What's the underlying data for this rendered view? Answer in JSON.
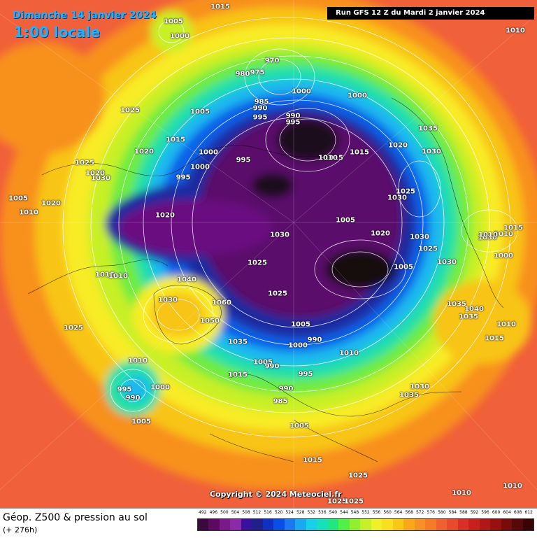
{
  "header": {
    "date": "Dimanche 14 janvier 2024",
    "time": "1:00 locale",
    "run": "Run GFS 12 Z du Mardi 2 janvier 2024"
  },
  "copyright": "Copyright © 2024 Meteociel.fr",
  "footer": {
    "title": "Géop. Z500 & pression au sol",
    "subtitle": "(+ 276h)"
  },
  "legend": {
    "labels": [
      "492",
      "496",
      "500",
      "504",
      "508",
      "512",
      "516",
      "520",
      "524",
      "528",
      "532",
      "536",
      "540",
      "544",
      "548",
      "552",
      "556",
      "560",
      "564",
      "568",
      "572",
      "576",
      "580",
      "584",
      "588",
      "592",
      "596",
      "600",
      "604",
      "608",
      "612"
    ],
    "colors": [
      "#3a0a3e",
      "#5a0b60",
      "#7a1a88",
      "#8a2aa8",
      "#3a10a0",
      "#20208a",
      "#1030c0",
      "#0a4ee8",
      "#1a78f0",
      "#1aa8f0",
      "#18d0e8",
      "#18e0b8",
      "#20e880",
      "#50f048",
      "#90f030",
      "#c8f028",
      "#f0f028",
      "#f8e020",
      "#f8c818",
      "#f8a818",
      "#f89028",
      "#f87a28",
      "#f06030",
      "#e84a2c",
      "#d83028",
      "#c8201c",
      "#b01818",
      "#981010",
      "#780c0c",
      "#580808",
      "#380404"
    ]
  },
  "map": {
    "isobar_labels": [
      {
        "t": "1015"
      },
      {
        "t": "1005"
      },
      {
        "t": "1000"
      },
      {
        "t": "1025"
      },
      {
        "t": "1010"
      },
      {
        "t": "1005"
      },
      {
        "t": "970"
      },
      {
        "t": "975"
      },
      {
        "t": "980"
      },
      {
        "t": "985"
      },
      {
        "t": "990"
      },
      {
        "t": "995"
      },
      {
        "t": "1000"
      },
      {
        "t": "1000"
      },
      {
        "t": "990"
      },
      {
        "t": "995"
      },
      {
        "t": "1015"
      },
      {
        "t": "1015"
      },
      {
        "t": "995"
      },
      {
        "t": "1010"
      },
      {
        "t": "1015"
      },
      {
        "t": "1000"
      },
      {
        "t": "995"
      },
      {
        "t": "1020"
      },
      {
        "t": "1025"
      },
      {
        "t": "1030"
      },
      {
        "t": "1020"
      },
      {
        "t": "1030"
      },
      {
        "t": "1025"
      },
      {
        "t": "1030"
      },
      {
        "t": "1035"
      },
      {
        "t": "1020"
      },
      {
        "t": "1030"
      },
      {
        "t": "1010"
      },
      {
        "t": "1020"
      },
      {
        "t": "1005"
      },
      {
        "t": "1020"
      },
      {
        "t": "1030"
      },
      {
        "t": "1005"
      },
      {
        "t": "1020"
      },
      {
        "t": "1025"
      },
      {
        "t": "1005"
      },
      {
        "t": "1030"
      },
      {
        "t": "1025"
      },
      {
        "t": "1000"
      },
      {
        "t": "1015"
      },
      {
        "t": "1010"
      },
      {
        "t": "1040"
      },
      {
        "t": "1025"
      },
      {
        "t": "1030"
      },
      {
        "t": "1060"
      },
      {
        "t": "1050"
      },
      {
        "t": "1035"
      },
      {
        "t": "1005"
      },
      {
        "t": "1000"
      },
      {
        "t": "990"
      },
      {
        "t": "1010"
      },
      {
        "t": "1035"
      },
      {
        "t": "1030"
      },
      {
        "t": "1040"
      },
      {
        "t": "1035"
      },
      {
        "t": "1010"
      },
      {
        "t": "1015"
      },
      {
        "t": "1025"
      },
      {
        "t": "1010"
      },
      {
        "t": "995"
      },
      {
        "t": "990"
      },
      {
        "t": "1000"
      },
      {
        "t": "1005"
      },
      {
        "t": "1015"
      },
      {
        "t": "1005"
      },
      {
        "t": "990"
      },
      {
        "t": "995"
      },
      {
        "t": "990"
      },
      {
        "t": "985"
      },
      {
        "t": "1005"
      },
      {
        "t": "1030"
      },
      {
        "t": "1035"
      },
      {
        "t": "1015"
      },
      {
        "t": "1025"
      },
      {
        "t": "1025"
      },
      {
        "t": "1025"
      },
      {
        "t": "1010"
      },
      {
        "t": "1010"
      },
      {
        "t": "1010"
      },
      {
        "t": "1015"
      },
      {
        "t": "1010"
      },
      {
        "t": "1000"
      }
    ]
  }
}
